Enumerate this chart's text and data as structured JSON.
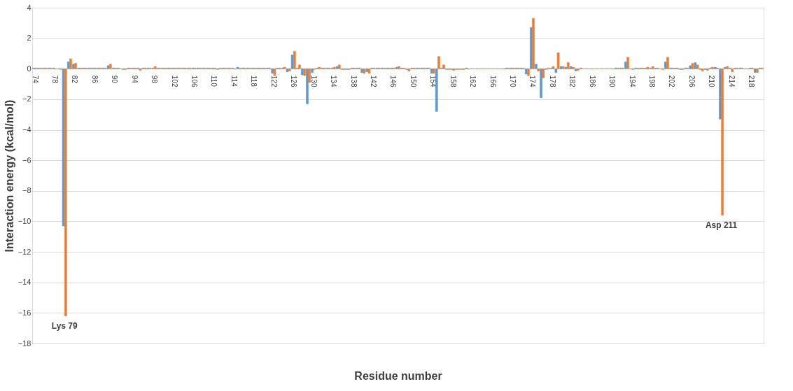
{
  "chart_data": {
    "type": "bar",
    "xlabel": "Residue number",
    "ylabel": "Interaction energy (kcal/mol)",
    "categories": [
      "74",
      null,
      null,
      null,
      "78",
      null,
      null,
      null,
      "82",
      null,
      null,
      null,
      "86",
      null,
      null,
      null,
      "90",
      null,
      null,
      null,
      "94",
      null,
      null,
      null,
      "98",
      null,
      null,
      null,
      "102",
      null,
      null,
      null,
      "106",
      null,
      null,
      null,
      "110",
      null,
      null,
      null,
      "114",
      null,
      null,
      null,
      "118",
      null,
      null,
      null,
      "122",
      null,
      null,
      null,
      "126",
      null,
      null,
      null,
      "130",
      null,
      null,
      null,
      "134",
      null,
      null,
      null,
      "138",
      null,
      null,
      null,
      "142",
      null,
      null,
      null,
      "146",
      null,
      null,
      null,
      "150",
      null,
      null,
      null,
      "154",
      null,
      null,
      null,
      "158",
      null,
      null,
      null,
      "162",
      null,
      null,
      null,
      "166",
      null,
      null,
      null,
      "170",
      null,
      null,
      null,
      "174",
      null,
      null,
      null,
      "178",
      null,
      null,
      null,
      "182",
      null,
      null,
      null,
      "186",
      null,
      null,
      null,
      "190",
      null,
      null,
      null,
      "194",
      null,
      null,
      null,
      "198",
      null,
      null,
      null,
      "202",
      null,
      null,
      null,
      "206",
      null,
      null,
      null,
      "210",
      null,
      null,
      null,
      "214",
      null,
      null,
      null,
      "218",
      null,
      null
    ],
    "series": [
      {
        "color": "#5b9bd5",
        "values": [
          0.05,
          0.05,
          0.05,
          0.05,
          0.05,
          0,
          -10.3,
          0.45,
          0.3,
          0.05,
          0.05,
          0.05,
          0.05,
          0.05,
          0.05,
          0.2,
          0.05,
          0.05,
          -0.05,
          0.05,
          0.05,
          0.05,
          0.05,
          0.05,
          0.05,
          0.05,
          0.05,
          0.05,
          0.05,
          0.05,
          0.05,
          0.05,
          0.05,
          0.05,
          0.05,
          0.05,
          0.05,
          -0.05,
          0.05,
          0.05,
          0.05,
          0.1,
          0.05,
          0.05,
          0.05,
          0.05,
          0.05,
          0.05,
          -0.3,
          0.05,
          0.05,
          -0.2,
          0.9,
          0.05,
          -0.4,
          -2.3,
          -0.25,
          0.05,
          0.05,
          0.05,
          0.05,
          0.15,
          -0.05,
          -0.05,
          0.05,
          0.05,
          -0.25,
          -0.2,
          0.05,
          0.05,
          0.05,
          0.05,
          0.05,
          0.1,
          0.05,
          -0.05,
          0.05,
          0.05,
          0.05,
          0.05,
          -0.3,
          -2.8,
          0.05,
          -0.05,
          -0.05,
          -0.05,
          -0.05,
          0.05,
          0,
          0,
          0,
          0,
          0,
          0,
          0,
          0.05,
          0.05,
          0.05,
          0.05,
          -0.35,
          2.7,
          0.3,
          -1.9,
          -0.05,
          0.05,
          -0.25,
          0.15,
          0.1,
          0.15,
          -0.15,
          0.05,
          0,
          0,
          0,
          0,
          0,
          0,
          0.05,
          0.05,
          0.45,
          0,
          0.05,
          0.05,
          0.05,
          0.05,
          0.05,
          0,
          0.45,
          0.05,
          0.05,
          -0.05,
          0.05,
          0.2,
          0.4,
          -0.05,
          -0.05,
          0.05,
          0.1,
          -3.3,
          0.1,
          0.05,
          0.05,
          0.05,
          0,
          0.05,
          -0.25,
          0.05
        ]
      },
      {
        "color": "#ed7d31",
        "values": [
          0.05,
          0.05,
          0.05,
          0.05,
          0,
          -0.05,
          -16.2,
          0.65,
          0.35,
          0.05,
          0.05,
          0.05,
          0.05,
          0.05,
          0.05,
          0.3,
          0.05,
          0,
          -0.05,
          0.05,
          0.05,
          -0.1,
          0.05,
          0.05,
          0.15,
          0.05,
          0.05,
          0.05,
          0.05,
          0.05,
          0.05,
          0.05,
          0.05,
          0.05,
          0.05,
          0.05,
          0.05,
          0.05,
          0.05,
          0.05,
          0,
          0.05,
          0.05,
          0.05,
          0.05,
          0.05,
          0.05,
          0.05,
          -0.45,
          0.05,
          0.1,
          -0.15,
          1.15,
          0.25,
          -0.45,
          -0.9,
          -0.05,
          0.1,
          0.05,
          0.05,
          0.1,
          0.25,
          -0.05,
          -0.05,
          0.05,
          0.05,
          -0.3,
          -0.3,
          0.05,
          0.05,
          0.05,
          0.05,
          0.05,
          0.15,
          0.05,
          -0.15,
          0.05,
          0.05,
          0.05,
          0.05,
          -0.3,
          0.8,
          0.25,
          -0.05,
          -0.1,
          -0.05,
          -0.05,
          0,
          0,
          0,
          0,
          0,
          0,
          0,
          0,
          0.05,
          0.05,
          0.05,
          0.05,
          -0.45,
          3.3,
          -0.15,
          -0.6,
          0.05,
          0.15,
          1.05,
          0.15,
          0.4,
          0.1,
          -0.1,
          0,
          0,
          0,
          0,
          0,
          0,
          0,
          0.05,
          0.05,
          0.75,
          -0.05,
          0.05,
          0.05,
          0.1,
          0.15,
          0.05,
          -0.05,
          0.75,
          0.05,
          0.05,
          -0.05,
          0.05,
          0.35,
          0.25,
          -0.15,
          -0.1,
          0.1,
          0.05,
          -9.6,
          0.15,
          -0.2,
          0.05,
          0.05,
          0,
          0.05,
          -0.25,
          0.05
        ]
      }
    ],
    "ylim": [
      -18,
      4
    ],
    "yticks": [
      -18,
      -16,
      -14,
      -12,
      -10,
      -8,
      -6,
      -4,
      -2,
      0,
      2,
      4
    ],
    "grid": "y",
    "legend": false,
    "annotations": [
      "Lys 79",
      "Asp 211"
    ]
  }
}
